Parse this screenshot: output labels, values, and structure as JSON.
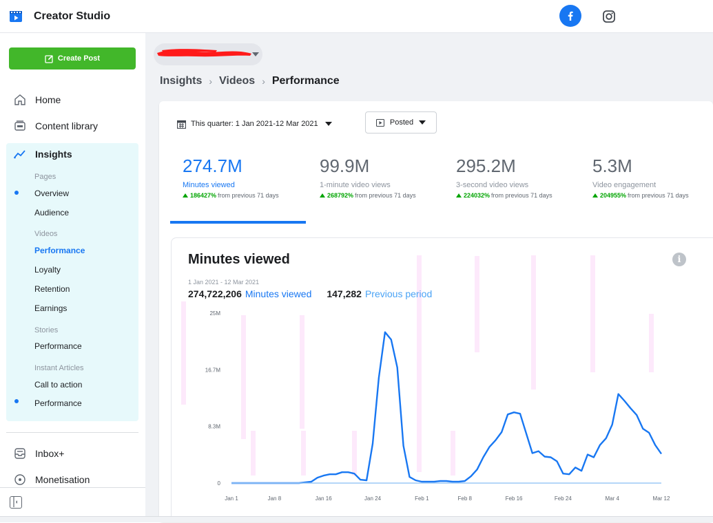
{
  "app": {
    "title": "Creator Studio"
  },
  "platforms": [
    {
      "name": "facebook-icon"
    },
    {
      "name": "instagram-icon"
    }
  ],
  "sidebar": {
    "create_post": "Create Post",
    "home": "Home",
    "content_library": "Content library",
    "insights": "Insights",
    "pages_header": "Pages",
    "overview": "Overview",
    "audience": "Audience",
    "videos_header": "Videos",
    "videos_performance": "Performance",
    "loyalty": "Loyalty",
    "retention": "Retention",
    "earnings": "Earnings",
    "stories_header": "Stories",
    "stories_performance": "Performance",
    "instant_articles_header": "Instant Articles",
    "call_to_action": "Call to action",
    "ia_performance": "Performance",
    "inbox": "Inbox+",
    "monetisation": "Monetisation"
  },
  "breadcrumb": [
    "Insights",
    "Videos",
    "Performance"
  ],
  "filters": {
    "date_range": "This quarter: 1 Jan 2021-12 Mar 2021",
    "posted": "Posted"
  },
  "metrics": [
    {
      "value": "274.7M",
      "label": "Minutes viewed",
      "change_pct": "186427%",
      "change_text": "from previous 71 days"
    },
    {
      "value": "99.9M",
      "label": "1-minute video views",
      "change_pct": "268792%",
      "change_text": "from previous 71 days"
    },
    {
      "value": "295.2M",
      "label": "3-second video views",
      "change_pct": "224032%",
      "change_text": "from previous 71 days"
    },
    {
      "value": "5.3M",
      "label": "Video engagement",
      "change_pct": "204955%",
      "change_text": "from previous 71 days"
    }
  ],
  "chart_panel": {
    "title": "Minutes viewed",
    "date_range": "1 Jan 2021 - 12 Mar 2021",
    "current_total": "274,722,206",
    "current_label": "Minutes viewed",
    "previous_total": "147,282",
    "previous_label": "Previous period"
  },
  "colors": {
    "accent": "#1877f2",
    "create_green": "#42b72a",
    "positive": "#00a400",
    "panel_bg": "#e7f9fb"
  },
  "chart_data": {
    "type": "line",
    "title": "Minutes viewed",
    "xlabel": "",
    "ylabel": "",
    "y_ticks": [
      "0",
      "8.3M",
      "16.7M",
      "25M"
    ],
    "ylim": [
      0,
      25
    ],
    "y_unit": "M",
    "x_ticks": [
      {
        "label": "Jan 1",
        "day": 1
      },
      {
        "label": "Jan 8",
        "day": 8
      },
      {
        "label": "Jan 16",
        "day": 16
      },
      {
        "label": "Jan 24",
        "day": 24
      },
      {
        "label": "Feb 1",
        "day": 32
      },
      {
        "label": "Feb 8",
        "day": 39
      },
      {
        "label": "Feb 16",
        "day": 47
      },
      {
        "label": "Feb 24",
        "day": 55
      },
      {
        "label": "Mar 4",
        "day": 63
      },
      {
        "label": "Mar 12",
        "day": 71
      }
    ],
    "xlim": [
      1,
      71
    ],
    "series": [
      {
        "name": "Minutes viewed",
        "color": "#1877f2",
        "points": [
          [
            1,
            0
          ],
          [
            2,
            0
          ],
          [
            3,
            0
          ],
          [
            4,
            0
          ],
          [
            5,
            0
          ],
          [
            6,
            0
          ],
          [
            7,
            0
          ],
          [
            8,
            0
          ],
          [
            9,
            0
          ],
          [
            10,
            0
          ],
          [
            11,
            0
          ],
          [
            12,
            0
          ],
          [
            13,
            0.1
          ],
          [
            14,
            0.2
          ],
          [
            15,
            0.8
          ],
          [
            16,
            1.1
          ],
          [
            17,
            1.3
          ],
          [
            18,
            1.3
          ],
          [
            19,
            1.6
          ],
          [
            20,
            1.6
          ],
          [
            21,
            1.4
          ],
          [
            22,
            0.5
          ],
          [
            23,
            0.4
          ],
          [
            24,
            5.8
          ],
          [
            25,
            15.5
          ],
          [
            26,
            22.2
          ],
          [
            27,
            21.1
          ],
          [
            28,
            17.0
          ],
          [
            29,
            5.5
          ],
          [
            30,
            0.9
          ],
          [
            31,
            0.4
          ],
          [
            32,
            0.2
          ],
          [
            33,
            0.2
          ],
          [
            34,
            0.2
          ],
          [
            35,
            0.3
          ],
          [
            36,
            0.3
          ],
          [
            37,
            0.2
          ],
          [
            38,
            0.2
          ],
          [
            39,
            0.3
          ],
          [
            40,
            1.0
          ],
          [
            41,
            2.0
          ],
          [
            42,
            3.8
          ],
          [
            43,
            5.3
          ],
          [
            44,
            6.3
          ],
          [
            45,
            7.5
          ],
          [
            46,
            10.1
          ],
          [
            47,
            10.4
          ],
          [
            48,
            10.2
          ],
          [
            49,
            7.3
          ],
          [
            50,
            4.4
          ],
          [
            51,
            4.7
          ],
          [
            52,
            3.9
          ],
          [
            53,
            3.8
          ],
          [
            54,
            3.2
          ],
          [
            55,
            1.4
          ],
          [
            56,
            1.3
          ],
          [
            57,
            2.3
          ],
          [
            58,
            1.8
          ],
          [
            59,
            4.2
          ],
          [
            60,
            3.8
          ],
          [
            61,
            5.6
          ],
          [
            62,
            6.6
          ],
          [
            63,
            8.6
          ],
          [
            64,
            13.1
          ],
          [
            65,
            12.1
          ],
          [
            66,
            11.0
          ],
          [
            67,
            10.0
          ],
          [
            68,
            8.0
          ],
          [
            69,
            7.4
          ],
          [
            70,
            5.6
          ],
          [
            71,
            4.3
          ]
        ]
      },
      {
        "name": "Previous period",
        "color": "#9cc9f5",
        "points": [
          [
            1,
            0
          ],
          [
            71,
            0
          ]
        ]
      }
    ],
    "grid": false,
    "legend": "top-left"
  }
}
